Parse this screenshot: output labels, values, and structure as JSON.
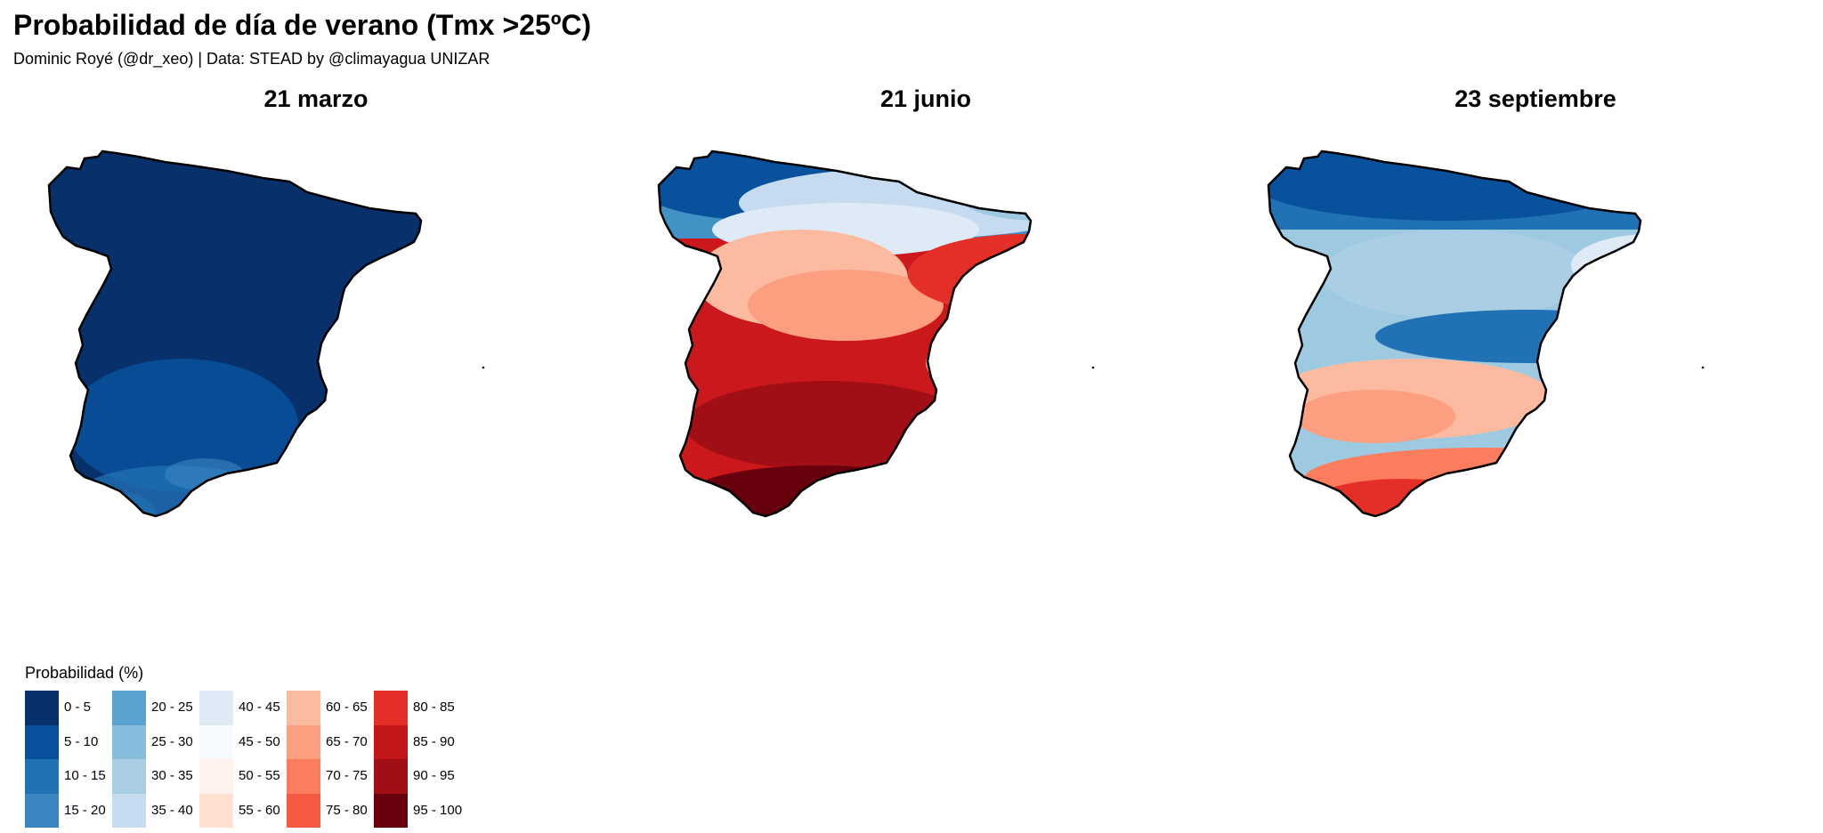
{
  "title": "Probabilidad de día de verano (Tmx >25ºC)",
  "subtitle": "Dominic Royé (@dr_xeo) | Data: STEAD by @climayagua UNIZAR",
  "maps": [
    {
      "title": "21 marzo",
      "dominant_class": "0 - 5",
      "description_colors": [
        "#08306b",
        "#08519c",
        "#2171b5"
      ]
    },
    {
      "title": "21 junio",
      "dominant_class": "85 - 90",
      "description_colors": [
        "#08519c",
        "#c6dbef",
        "#fcbba1",
        "#cb181d",
        "#67000d"
      ]
    },
    {
      "title": "23 septiembre",
      "dominant_class": "40 - 45",
      "description_colors": [
        "#08519c",
        "#9ecae1",
        "#f7fbff",
        "#fb6a4a",
        "#cb181d"
      ]
    }
  ],
  "legend": {
    "title": "Probabilidad (%)",
    "items": [
      {
        "label": "0 - 5",
        "color": "#08306b"
      },
      {
        "label": "5 - 10",
        "color": "#08519c"
      },
      {
        "label": "10 - 15",
        "color": "#2171b5"
      },
      {
        "label": "15 - 20",
        "color": "#3a85c2"
      },
      {
        "label": "20 - 25",
        "color": "#5aa2d0"
      },
      {
        "label": "25 - 30",
        "color": "#87bcdc"
      },
      {
        "label": "30 - 35",
        "color": "#aacfe5"
      },
      {
        "label": "35 - 40",
        "color": "#c6dbef"
      },
      {
        "label": "40 - 45",
        "color": "#deebf7"
      },
      {
        "label": "45 - 50",
        "color": "#f7fbff"
      },
      {
        "label": "50 - 55",
        "color": "#fff2ee"
      },
      {
        "label": "55 - 60",
        "color": "#fee0d2"
      },
      {
        "label": "60 - 65",
        "color": "#fcbba1"
      },
      {
        "label": "65 - 70",
        "color": "#fc9e80"
      },
      {
        "label": "70 - 75",
        "color": "#fb7d5e"
      },
      {
        "label": "75 - 80",
        "color": "#f65a43"
      },
      {
        "label": "80 - 85",
        "color": "#e32f27"
      },
      {
        "label": "85 - 90",
        "color": "#c2161b"
      },
      {
        "label": "90 - 95",
        "color": "#a10e15"
      },
      {
        "label": "95 - 100",
        "color": "#67000d"
      }
    ]
  }
}
